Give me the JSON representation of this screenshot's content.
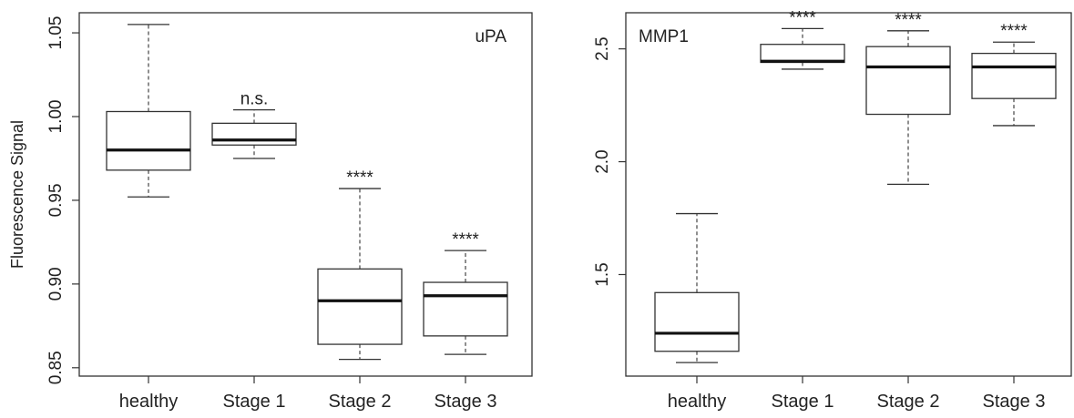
{
  "chart_data": [
    {
      "type": "box",
      "panel_label": "uPA",
      "ylabel": "Fluorescence Signal",
      "yticks": [
        0.85,
        0.9,
        0.95,
        1.0,
        1.05
      ],
      "ytick_labels": [
        "0.85",
        "0.90",
        "0.95",
        "1.00",
        "1.05"
      ],
      "ylim": [
        0.845,
        1.062
      ],
      "categories": [
        "healthy",
        "Stage 1",
        "Stage 2",
        "Stage 3"
      ],
      "boxes": [
        {
          "min": 0.952,
          "q1": 0.968,
          "median": 0.98,
          "q3": 1.003,
          "max": 1.055,
          "annotation": ""
        },
        {
          "min": 0.975,
          "q1": 0.983,
          "median": 0.986,
          "q3": 0.996,
          "max": 1.004,
          "annotation": "n.s."
        },
        {
          "min": 0.855,
          "q1": 0.864,
          "median": 0.89,
          "q3": 0.909,
          "max": 0.957,
          "annotation": "****"
        },
        {
          "min": 0.858,
          "q1": 0.869,
          "median": 0.893,
          "q3": 0.901,
          "max": 0.92,
          "annotation": "****"
        }
      ]
    },
    {
      "type": "box",
      "panel_label": "MMP1",
      "ylabel": "",
      "yticks": [
        1.5,
        2.0,
        2.5
      ],
      "ytick_labels": [
        "1.5",
        "2.0",
        "2.5"
      ],
      "ylim": [
        1.05,
        2.66
      ],
      "categories": [
        "healthy",
        "Stage 1",
        "Stage 2",
        "Stage 3"
      ],
      "boxes": [
        {
          "min": 1.11,
          "q1": 1.16,
          "median": 1.24,
          "q3": 1.42,
          "max": 1.77,
          "annotation": ""
        },
        {
          "min": 2.41,
          "q1": 2.44,
          "median": 2.445,
          "q3": 2.52,
          "max": 2.59,
          "annotation": "****"
        },
        {
          "min": 1.9,
          "q1": 2.21,
          "median": 2.42,
          "q3": 2.51,
          "max": 2.58,
          "annotation": "****"
        },
        {
          "min": 2.16,
          "q1": 2.28,
          "median": 2.42,
          "q3": 2.48,
          "max": 2.53,
          "annotation": "****"
        }
      ]
    }
  ]
}
